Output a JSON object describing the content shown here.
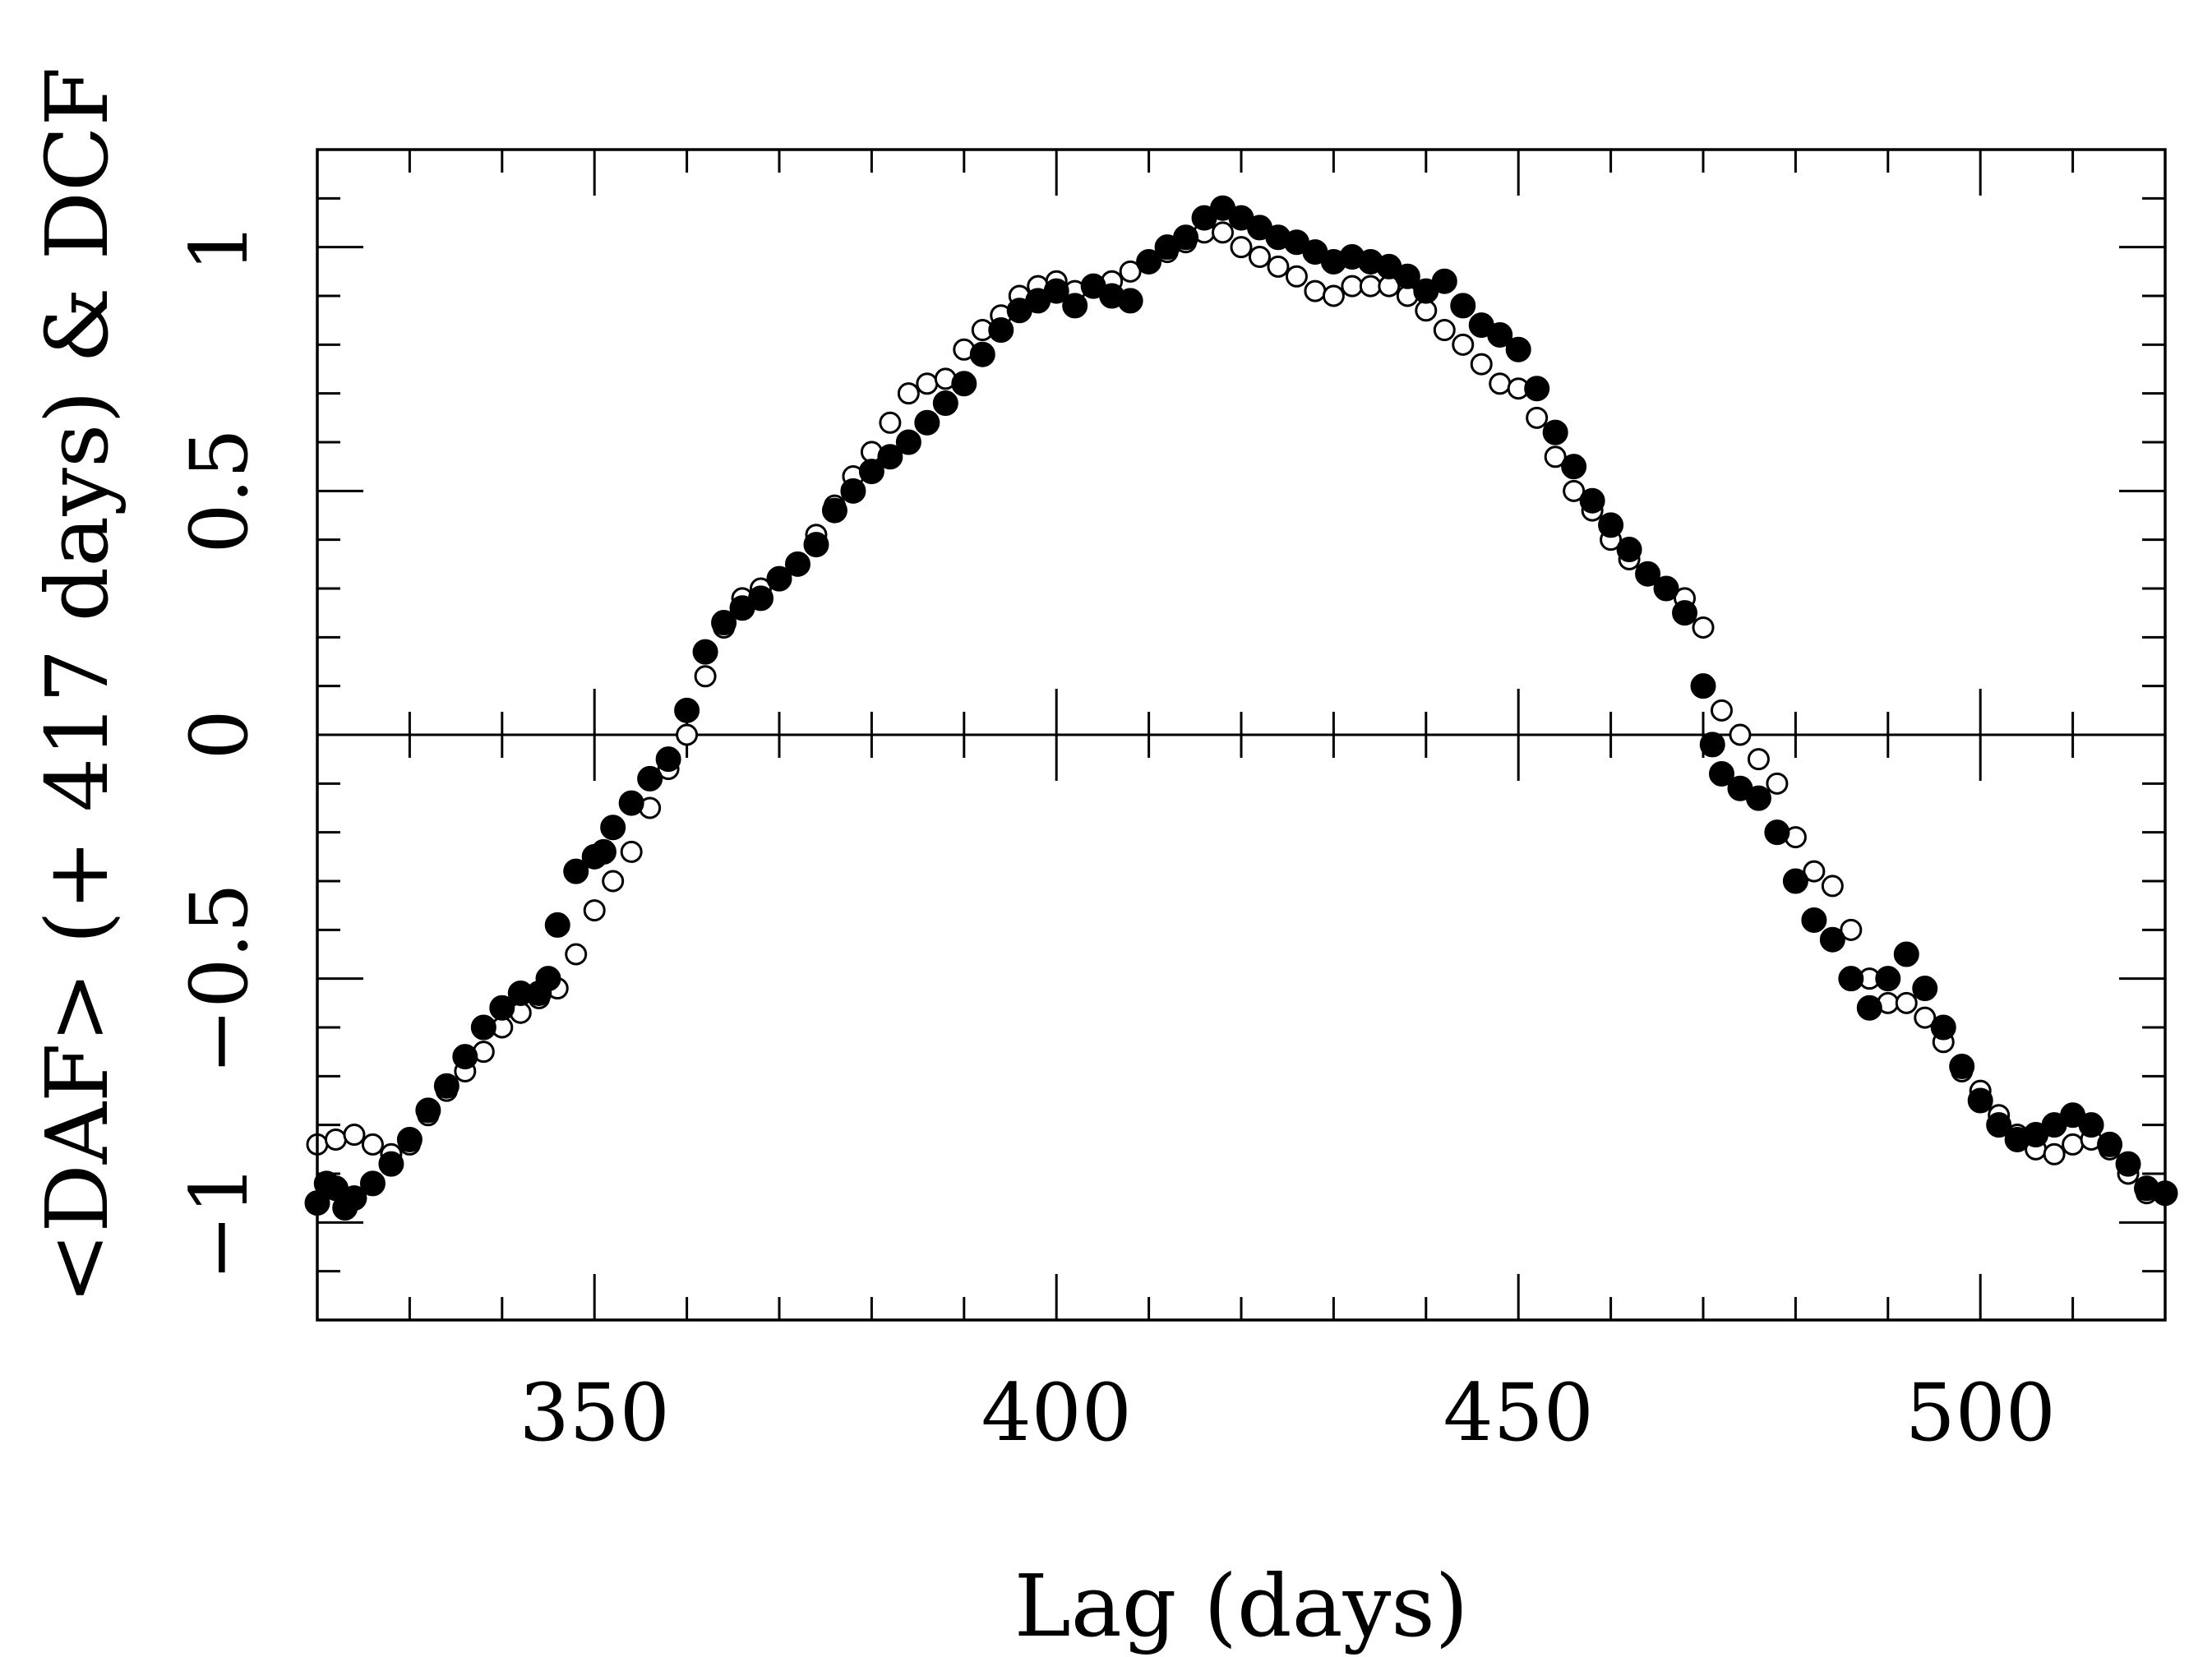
{
  "chart_data": {
    "type": "scatter",
    "xlabel": "Lag (days)",
    "ylabel": "<DAF> (+ 417 days) & DCF",
    "xlim": [
      320,
      520
    ],
    "ylim": [
      -1.2,
      1.2
    ],
    "x_ticks": [
      350,
      400,
      450,
      500
    ],
    "x_tick_labels": [
      "350",
      "400",
      "450",
      "500"
    ],
    "y_ticks": [
      -1,
      -0.5,
      0,
      0.5,
      1
    ],
    "y_tick_labels": [
      "−1",
      "−0.5",
      "0",
      "0.5",
      "1"
    ],
    "zero_line": true,
    "grid": false,
    "series": [
      {
        "marker": "open-circle",
        "points": [
          [
            320,
            -0.84
          ],
          [
            322,
            -0.83
          ],
          [
            324,
            -0.82
          ],
          [
            326,
            -0.84
          ],
          [
            328,
            -0.86
          ],
          [
            330,
            -0.84
          ],
          [
            332,
            -0.78
          ],
          [
            334,
            -0.73
          ],
          [
            336,
            -0.69
          ],
          [
            338,
            -0.65
          ],
          [
            340,
            -0.6
          ],
          [
            342,
            -0.57
          ],
          [
            344,
            -0.54
          ],
          [
            346,
            -0.52
          ],
          [
            348,
            -0.45
          ],
          [
            350,
            -0.36
          ],
          [
            352,
            -0.3
          ],
          [
            354,
            -0.24
          ],
          [
            356,
            -0.15
          ],
          [
            358,
            -0.07
          ],
          [
            360,
            0.0
          ],
          [
            362,
            0.12
          ],
          [
            364,
            0.22
          ],
          [
            366,
            0.28
          ],
          [
            368,
            0.3
          ],
          [
            370,
            0.32
          ],
          [
            372,
            0.35
          ],
          [
            374,
            0.41
          ],
          [
            376,
            0.47
          ],
          [
            378,
            0.53
          ],
          [
            380,
            0.58
          ],
          [
            382,
            0.64
          ],
          [
            384,
            0.7
          ],
          [
            386,
            0.72
          ],
          [
            388,
            0.73
          ],
          [
            390,
            0.79
          ],
          [
            392,
            0.83
          ],
          [
            394,
            0.86
          ],
          [
            396,
            0.9
          ],
          [
            398,
            0.92
          ],
          [
            400,
            0.93
          ],
          [
            402,
            0.91
          ],
          [
            404,
            0.92
          ],
          [
            406,
            0.93
          ],
          [
            408,
            0.95
          ],
          [
            410,
            0.97
          ],
          [
            412,
            0.99
          ],
          [
            414,
            1.01
          ],
          [
            416,
            1.03
          ],
          [
            418,
            1.03
          ],
          [
            420,
            1.0
          ],
          [
            422,
            0.98
          ],
          [
            424,
            0.96
          ],
          [
            426,
            0.94
          ],
          [
            428,
            0.91
          ],
          [
            430,
            0.9
          ],
          [
            432,
            0.92
          ],
          [
            434,
            0.92
          ],
          [
            436,
            0.92
          ],
          [
            438,
            0.9
          ],
          [
            440,
            0.87
          ],
          [
            442,
            0.83
          ],
          [
            444,
            0.8
          ],
          [
            446,
            0.76
          ],
          [
            448,
            0.72
          ],
          [
            450,
            0.71
          ],
          [
            452,
            0.65
          ],
          [
            454,
            0.57
          ],
          [
            456,
            0.5
          ],
          [
            458,
            0.46
          ],
          [
            460,
            0.4
          ],
          [
            462,
            0.36
          ],
          [
            464,
            0.33
          ],
          [
            466,
            0.3
          ],
          [
            468,
            0.28
          ],
          [
            470,
            0.22
          ],
          [
            472,
            0.05
          ],
          [
            474,
            0.0
          ],
          [
            476,
            -0.05
          ],
          [
            478,
            -0.1
          ],
          [
            480,
            -0.21
          ],
          [
            482,
            -0.28
          ],
          [
            484,
            -0.31
          ],
          [
            486,
            -0.4
          ],
          [
            488,
            -0.5
          ],
          [
            490,
            -0.55
          ],
          [
            492,
            -0.55
          ],
          [
            494,
            -0.58
          ],
          [
            496,
            -0.63
          ],
          [
            498,
            -0.69
          ],
          [
            500,
            -0.73
          ],
          [
            502,
            -0.78
          ],
          [
            504,
            -0.82
          ],
          [
            506,
            -0.85
          ],
          [
            508,
            -0.86
          ],
          [
            510,
            -0.84
          ],
          [
            512,
            -0.83
          ],
          [
            514,
            -0.85
          ],
          [
            516,
            -0.9
          ],
          [
            518,
            -0.94
          ]
        ]
      },
      {
        "marker": "filled-circle",
        "points": [
          [
            320,
            -0.96
          ],
          [
            321,
            -0.92
          ],
          [
            322,
            -0.93
          ],
          [
            323,
            -0.97
          ],
          [
            324,
            -0.95
          ],
          [
            326,
            -0.92
          ],
          [
            328,
            -0.88
          ],
          [
            330,
            -0.83
          ],
          [
            332,
            -0.77
          ],
          [
            334,
            -0.72
          ],
          [
            336,
            -0.66
          ],
          [
            338,
            -0.6
          ],
          [
            340,
            -0.56
          ],
          [
            342,
            -0.53
          ],
          [
            344,
            -0.53
          ],
          [
            345,
            -0.5
          ],
          [
            346,
            -0.39
          ],
          [
            348,
            -0.28
          ],
          [
            350,
            -0.25
          ],
          [
            351,
            -0.24
          ],
          [
            352,
            -0.19
          ],
          [
            354,
            -0.14
          ],
          [
            356,
            -0.09
          ],
          [
            358,
            -0.05
          ],
          [
            360,
            0.05
          ],
          [
            362,
            0.17
          ],
          [
            364,
            0.23
          ],
          [
            366,
            0.26
          ],
          [
            368,
            0.28
          ],
          [
            370,
            0.32
          ],
          [
            372,
            0.35
          ],
          [
            374,
            0.39
          ],
          [
            376,
            0.46
          ],
          [
            378,
            0.5
          ],
          [
            380,
            0.54
          ],
          [
            382,
            0.57
          ],
          [
            384,
            0.6
          ],
          [
            386,
            0.64
          ],
          [
            388,
            0.68
          ],
          [
            390,
            0.72
          ],
          [
            392,
            0.78
          ],
          [
            394,
            0.83
          ],
          [
            396,
            0.87
          ],
          [
            398,
            0.89
          ],
          [
            400,
            0.91
          ],
          [
            402,
            0.88
          ],
          [
            404,
            0.92
          ],
          [
            406,
            0.9
          ],
          [
            408,
            0.89
          ],
          [
            410,
            0.97
          ],
          [
            412,
            1.0
          ],
          [
            414,
            1.02
          ],
          [
            416,
            1.06
          ],
          [
            418,
            1.08
          ],
          [
            420,
            1.06
          ],
          [
            422,
            1.04
          ],
          [
            424,
            1.02
          ],
          [
            426,
            1.01
          ],
          [
            428,
            0.99
          ],
          [
            430,
            0.97
          ],
          [
            432,
            0.98
          ],
          [
            434,
            0.97
          ],
          [
            436,
            0.96
          ],
          [
            438,
            0.94
          ],
          [
            440,
            0.91
          ],
          [
            442,
            0.93
          ],
          [
            444,
            0.88
          ],
          [
            446,
            0.84
          ],
          [
            448,
            0.82
          ],
          [
            450,
            0.79
          ],
          [
            452,
            0.71
          ],
          [
            454,
            0.62
          ],
          [
            456,
            0.55
          ],
          [
            458,
            0.48
          ],
          [
            460,
            0.43
          ],
          [
            462,
            0.38
          ],
          [
            464,
            0.33
          ],
          [
            466,
            0.3
          ],
          [
            468,
            0.25
          ],
          [
            470,
            0.1
          ],
          [
            471,
            -0.02
          ],
          [
            472,
            -0.08
          ],
          [
            474,
            -0.11
          ],
          [
            476,
            -0.13
          ],
          [
            478,
            -0.2
          ],
          [
            480,
            -0.3
          ],
          [
            482,
            -0.38
          ],
          [
            484,
            -0.42
          ],
          [
            486,
            -0.5
          ],
          [
            488,
            -0.56
          ],
          [
            490,
            -0.5
          ],
          [
            492,
            -0.45
          ],
          [
            494,
            -0.52
          ],
          [
            496,
            -0.6
          ],
          [
            498,
            -0.68
          ],
          [
            500,
            -0.75
          ],
          [
            502,
            -0.8
          ],
          [
            504,
            -0.83
          ],
          [
            506,
            -0.82
          ],
          [
            508,
            -0.8
          ],
          [
            510,
            -0.78
          ],
          [
            512,
            -0.8
          ],
          [
            514,
            -0.84
          ],
          [
            516,
            -0.88
          ],
          [
            518,
            -0.93
          ],
          [
            520,
            -0.94
          ]
        ]
      }
    ]
  }
}
